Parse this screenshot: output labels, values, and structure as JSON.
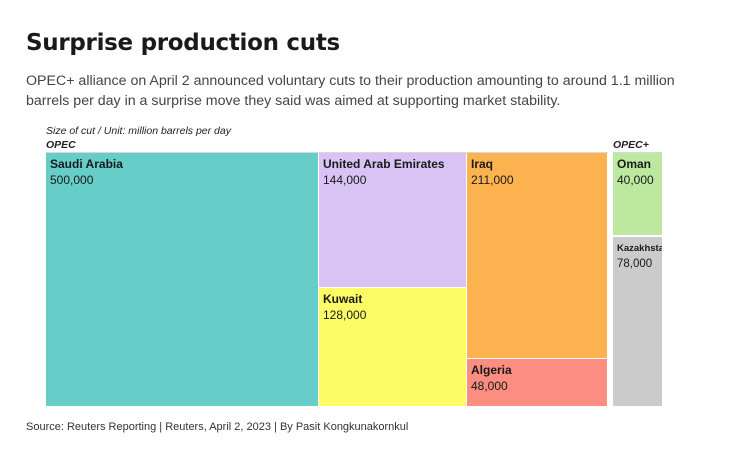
{
  "title": "Surprise production cuts",
  "subtitle": "OPEC+ alliance on April 2 announced voluntary cuts to their production amounting to around 1.1 million barrels per day in a surprise move they said was aimed at supporting market stability.",
  "unit_note": "Size of cut / Unit: million barrels per day",
  "source": "Source: Reuters Reporting | Reuters, April 2, 2023 | By Pasit Kongkunakornkul",
  "chart_data": {
    "type": "treemap",
    "title": "Surprise production cuts",
    "unit": "Size of cut / Unit: million barrels per day",
    "groups": [
      {
        "name": "OPEC",
        "items": [
          {
            "name": "Saudi Arabia",
            "value": 500000,
            "value_label": "500,000",
            "color": "#66cdc9"
          },
          {
            "name": "United Arab Emirates",
            "value": 144000,
            "value_label": "144,000",
            "color": "#d8c3f4"
          },
          {
            "name": "Kuwait",
            "value": 128000,
            "value_label": "128,000",
            "color": "#fdfc66"
          },
          {
            "name": "Iraq",
            "value": 211000,
            "value_label": "211,000",
            "color": "#fcb24f"
          },
          {
            "name": "Algeria",
            "value": 48000,
            "value_label": "48,000",
            "color": "#fc8d81"
          }
        ]
      },
      {
        "name": "OPEC+",
        "items": [
          {
            "name": "Oman",
            "value": 40000,
            "value_label": "40,000",
            "color": "#bde8a0"
          },
          {
            "name": "Kazakhstan",
            "display_name": "Kazakhsta",
            "value": 78000,
            "value_label": "78,000",
            "color": "#cbcbcb"
          }
        ]
      }
    ]
  }
}
